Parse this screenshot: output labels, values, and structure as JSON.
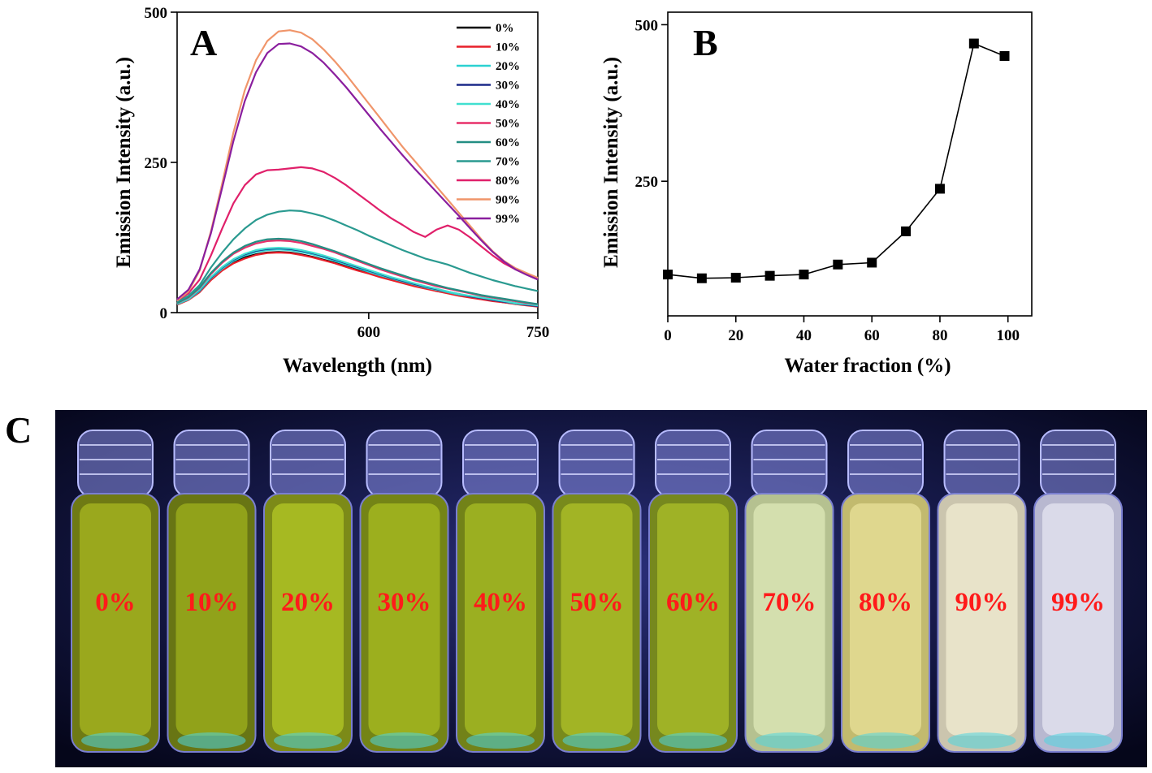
{
  "panels": {
    "a_letter": "A",
    "b_letter": "B",
    "c_letter": "C"
  },
  "chart_data": [
    {
      "panel": "A",
      "type": "line",
      "xlabel": "Wavelength (nm)",
      "ylabel": "Emission Intensity (a.u.)",
      "xlim": [
        430,
        750
      ],
      "ylim": [
        0,
        500
      ],
      "x_ticks": [
        600,
        750
      ],
      "y_ticks": [
        0,
        250,
        500
      ],
      "legend_position": "top-right",
      "x": [
        430,
        440,
        450,
        460,
        470,
        480,
        490,
        500,
        510,
        520,
        530,
        540,
        550,
        560,
        570,
        580,
        590,
        600,
        610,
        620,
        630,
        640,
        650,
        660,
        670,
        680,
        690,
        700,
        710,
        720,
        730,
        740,
        750
      ],
      "series": [
        {
          "name": "0%",
          "color": "#000000",
          "values": [
            14,
            22,
            36,
            56,
            72,
            84,
            92,
            97,
            100,
            101,
            100,
            97,
            93,
            88,
            83,
            77,
            71,
            66,
            60,
            55,
            50,
            45,
            41,
            36,
            33,
            29,
            26,
            23,
            20,
            17,
            15,
            13,
            11
          ]
        },
        {
          "name": "10%",
          "color": "#e8202a",
          "values": [
            13,
            21,
            34,
            54,
            70,
            82,
            90,
            96,
            99,
            100,
            99,
            96,
            92,
            87,
            82,
            76,
            70,
            65,
            59,
            54,
            49,
            44,
            40,
            36,
            32,
            28,
            25,
            22,
            19,
            17,
            14,
            12,
            10
          ]
        },
        {
          "name": "20%",
          "color": "#2bd1d1",
          "values": [
            14,
            22,
            36,
            57,
            73,
            86,
            95,
            101,
            104,
            105,
            104,
            101,
            97,
            92,
            86,
            80,
            74,
            68,
            62,
            57,
            52,
            47,
            42,
            38,
            34,
            30,
            27,
            24,
            21,
            18,
            15,
            13,
            11
          ]
        },
        {
          "name": "30%",
          "color": "#1c2a8a",
          "values": [
            15,
            23,
            37,
            58,
            75,
            88,
            97,
            103,
            106,
            107,
            106,
            103,
            99,
            94,
            88,
            82,
            76,
            70,
            64,
            58,
            53,
            48,
            43,
            39,
            35,
            31,
            27,
            24,
            21,
            18,
            16,
            13,
            11
          ]
        },
        {
          "name": "40%",
          "color": "#40e0d0",
          "values": [
            15,
            23,
            38,
            59,
            76,
            89,
            98,
            104,
            107,
            108,
            107,
            104,
            100,
            95,
            89,
            83,
            77,
            71,
            65,
            59,
            54,
            49,
            44,
            40,
            35,
            31,
            28,
            25,
            22,
            19,
            16,
            14,
            12
          ]
        },
        {
          "name": "50%",
          "color": "#e8306a",
          "values": [
            16,
            25,
            41,
            64,
            83,
            98,
            108,
            115,
            119,
            120,
            119,
            116,
            111,
            106,
            100,
            93,
            86,
            79,
            72,
            66,
            60,
            54,
            49,
            44,
            40,
            36,
            32,
            28,
            25,
            22,
            19,
            16,
            14
          ]
        },
        {
          "name": "60%",
          "color": "#238e83",
          "values": [
            16,
            26,
            42,
            66,
            85,
            100,
            111,
            118,
            122,
            123,
            122,
            119,
            114,
            108,
            102,
            95,
            88,
            81,
            74,
            68,
            62,
            56,
            51,
            46,
            41,
            37,
            33,
            29,
            26,
            23,
            20,
            17,
            14
          ]
        },
        {
          "name": "70%",
          "color": "#2a9a90",
          "values": [
            18,
            28,
            46,
            75,
            100,
            122,
            140,
            154,
            163,
            168,
            170,
            169,
            165,
            160,
            153,
            145,
            137,
            128,
            120,
            112,
            104,
            97,
            90,
            85,
            80,
            73,
            66,
            60,
            54,
            49,
            44,
            40,
            36
          ]
        },
        {
          "name": "80%",
          "color": "#e0206a",
          "values": [
            20,
            32,
            55,
            95,
            140,
            182,
            212,
            230,
            237,
            238,
            240,
            242,
            240,
            234,
            224,
            212,
            198,
            184,
            170,
            157,
            146,
            134,
            126,
            138,
            145,
            138,
            125,
            110,
            95,
            82,
            72,
            64,
            56
          ]
        },
        {
          "name": "90%",
          "color": "#f0956a",
          "values": [
            20,
            35,
            70,
            135,
            215,
            300,
            370,
            420,
            452,
            468,
            470,
            466,
            455,
            438,
            418,
            396,
            372,
            348,
            324,
            300,
            276,
            254,
            232,
            210,
            188,
            166,
            144,
            122,
            102,
            86,
            74,
            66,
            58
          ]
        },
        {
          "name": "99%",
          "color": "#8a1e9e",
          "values": [
            22,
            38,
            72,
            132,
            208,
            286,
            352,
            400,
            432,
            447,
            448,
            443,
            432,
            416,
            396,
            375,
            352,
            329,
            306,
            284,
            262,
            241,
            221,
            201,
            181,
            161,
            140,
            120,
            101,
            85,
            72,
            63,
            55
          ]
        }
      ]
    },
    {
      "panel": "B",
      "type": "line",
      "xlabel": "Water fraction (%)",
      "ylabel": "Emission Intensity (a.u.)",
      "xlim": [
        0,
        107
      ],
      "ylim": [
        35,
        520
      ],
      "x_ticks": [
        0,
        20,
        40,
        60,
        80,
        100
      ],
      "y_ticks": [
        250,
        500
      ],
      "marker": "square",
      "color": "#000000",
      "x": [
        0,
        10,
        20,
        30,
        40,
        50,
        60,
        70,
        80,
        90,
        99
      ],
      "y": [
        101,
        95,
        96,
        99,
        101,
        117,
        120,
        170,
        238,
        470,
        450
      ]
    }
  ],
  "photo": {
    "vials": [
      {
        "label": "0%",
        "glow": "#a8b820",
        "tint": "#6f7a14"
      },
      {
        "label": "10%",
        "glow": "#9fb21c",
        "tint": "#687514"
      },
      {
        "label": "20%",
        "glow": "#b4c826",
        "tint": "#7c8a18"
      },
      {
        "label": "30%",
        "glow": "#aabe22",
        "tint": "#748416"
      },
      {
        "label": "40%",
        "glow": "#a9bd24",
        "tint": "#728218"
      },
      {
        "label": "50%",
        "glow": "#b0c228",
        "tint": "#788a1c"
      },
      {
        "label": "60%",
        "glow": "#aec02a",
        "tint": "#76881e"
      },
      {
        "label": "70%",
        "glow": "#dfe8b8",
        "tint": "#b5c190"
      },
      {
        "label": "80%",
        "glow": "#e8e09a",
        "tint": "#c2ba6e"
      },
      {
        "label": "90%",
        "glow": "#f2ecd2",
        "tint": "#cbc5ae"
      },
      {
        "label": "99%",
        "glow": "#e6e6f2",
        "tint": "#b8b8d0"
      }
    ]
  }
}
